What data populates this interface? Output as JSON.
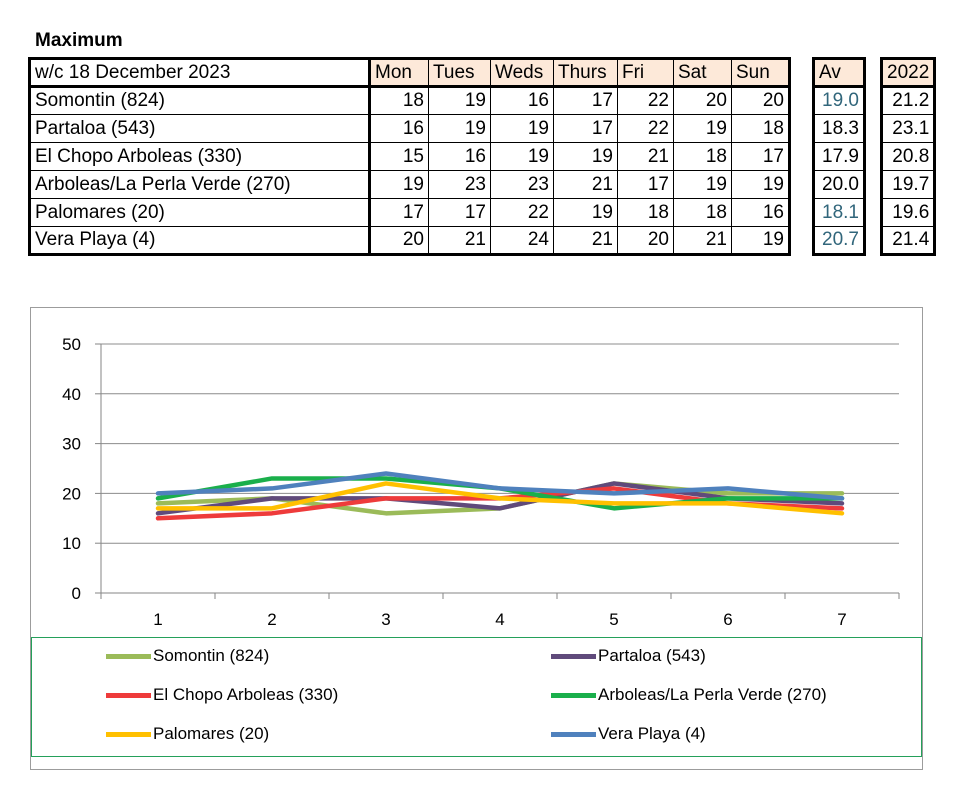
{
  "title": "Maximum",
  "table": {
    "corner": "w/c 18 December 2023",
    "days": [
      "Mon",
      "Tues",
      "Weds",
      "Thurs",
      "Fri",
      "Sat",
      "Sun"
    ],
    "av_header": "Av",
    "year_header": "2022",
    "rows": [
      {
        "name": "Somontin (824)",
        "values": [
          "18",
          "19",
          "16",
          "17",
          "22",
          "20",
          "20"
        ],
        "av": "19.0",
        "prev": "21.2"
      },
      {
        "name": "Partaloa (543)",
        "values": [
          "16",
          "19",
          "19",
          "17",
          "22",
          "19",
          "18"
        ],
        "av": "18.3",
        "prev": "23.1"
      },
      {
        "name": "El Chopo  Arboleas (330)",
        "values": [
          "15",
          "16",
          "19",
          "19",
          "21",
          "18",
          "17"
        ],
        "av": "17.9",
        "prev": "20.8"
      },
      {
        "name": "Arboleas/La Perla Verde (270)",
        "values": [
          "19",
          "23",
          "23",
          "21",
          "17",
          "19",
          "19"
        ],
        "av": "20.0",
        "prev": "19.7"
      },
      {
        "name": "Palomares (20)",
        "values": [
          "17",
          "17",
          "22",
          "19",
          "18",
          "18",
          "16"
        ],
        "av": "18.1",
        "prev": "19.6"
      },
      {
        "name": "Vera Playa (4)",
        "values": [
          "20",
          "21",
          "24",
          "21",
          "20",
          "21",
          "19"
        ],
        "av": "20.7",
        "prev": "21.4"
      }
    ]
  },
  "chart_data": {
    "type": "line",
    "x": [
      1,
      2,
      3,
      4,
      5,
      6,
      7
    ],
    "x_tick_labels": [
      "1",
      "2",
      "3",
      "4",
      "5",
      "6",
      "7"
    ],
    "y_tick_labels": [
      "0",
      "10",
      "20",
      "30",
      "40",
      "50"
    ],
    "ylim": [
      0,
      50
    ],
    "grid": "horizontal",
    "legend_position": "bottom",
    "series": [
      {
        "name": "Somontin (824)",
        "color": "#9bbb59",
        "values": [
          18,
          19,
          16,
          17,
          22,
          20,
          20
        ]
      },
      {
        "name": "Partaloa (543)",
        "color": "#604a7b",
        "values": [
          16,
          19,
          19,
          17,
          22,
          19,
          18
        ]
      },
      {
        "name": "El Chopo  Arboleas (330)",
        "color": "#ee3b3b",
        "values": [
          15,
          16,
          19,
          19,
          21,
          18,
          17
        ]
      },
      {
        "name": "Arboleas/La Perla Verde (270)",
        "color": "#1aaf4b",
        "values": [
          19,
          23,
          23,
          21,
          17,
          19,
          19
        ]
      },
      {
        "name": "Palomares (20)",
        "color": "#ffc000",
        "values": [
          17,
          17,
          22,
          19,
          18,
          18,
          16
        ]
      },
      {
        "name": "Vera Playa (4)",
        "color": "#4f81bd",
        "values": [
          20,
          21,
          24,
          21,
          20,
          21,
          19
        ]
      }
    ]
  }
}
